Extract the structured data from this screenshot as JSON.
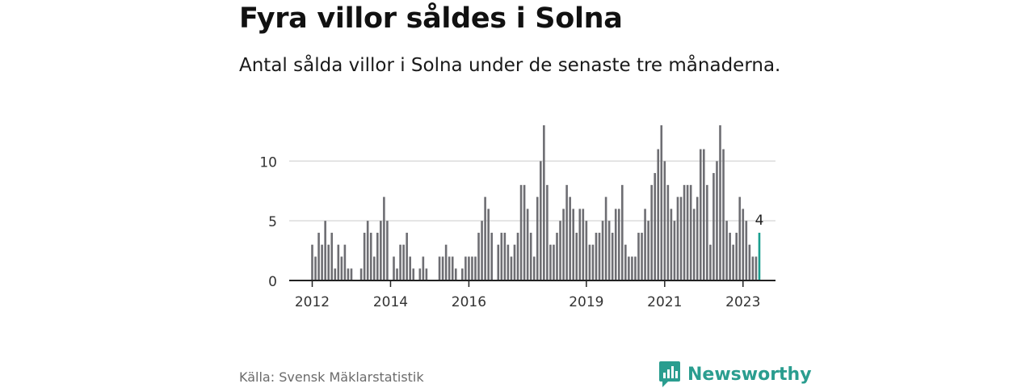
{
  "title": "Fyra villor såldes i Solna",
  "subtitle": "Antal sålda villor i Solna under de senaste tre månaderna.",
  "source": "Källa: Svensk Mäklarstatistik",
  "brand": {
    "name": "Newsworthy",
    "icon": "newsworthy-logo-icon",
    "color": "#2a9d8f"
  },
  "colors": {
    "bar": "#6e6e73",
    "highlight": "#1a9e8f",
    "grid": "#dcdcdc",
    "axis": "#222222"
  },
  "chart_data": {
    "type": "bar",
    "title": "",
    "xlabel": "",
    "ylabel": "",
    "ylim": [
      0,
      13
    ],
    "yticks": [
      0,
      5,
      10
    ],
    "xtick_labels": [
      "2012",
      "2014",
      "2016",
      "2019",
      "2021",
      "2023"
    ],
    "x_start": "2012-01",
    "xtick_months": [
      "2012-01",
      "2014-01",
      "2016-01",
      "2019-01",
      "2021-01",
      "2023-01"
    ],
    "highlight_label": "4",
    "values": [
      3,
      2,
      4,
      3,
      5,
      3,
      4,
      1,
      3,
      2,
      3,
      1,
      1,
      0,
      0,
      1,
      4,
      5,
      4,
      2,
      4,
      5,
      7,
      5,
      0,
      2,
      1,
      3,
      3,
      4,
      2,
      1,
      0,
      1,
      2,
      1,
      0,
      0,
      0,
      2,
      2,
      3,
      2,
      2,
      1,
      0,
      1,
      2,
      2,
      2,
      2,
      4,
      5,
      7,
      6,
      4,
      0,
      3,
      4,
      4,
      3,
      2,
      3,
      4,
      8,
      8,
      6,
      4,
      2,
      7,
      10,
      13,
      8,
      3,
      3,
      4,
      5,
      6,
      8,
      7,
      6,
      4,
      6,
      6,
      5,
      3,
      3,
      4,
      4,
      5,
      7,
      5,
      4,
      6,
      6,
      8,
      3,
      2,
      2,
      2,
      4,
      4,
      6,
      5,
      8,
      9,
      11,
      13,
      10,
      8,
      6,
      5,
      7,
      7,
      8,
      8,
      8,
      6,
      7,
      11,
      11,
      8,
      3,
      9,
      10,
      13,
      11,
      5,
      4,
      3,
      4,
      7,
      6,
      5,
      3,
      2,
      2,
      4
    ]
  }
}
